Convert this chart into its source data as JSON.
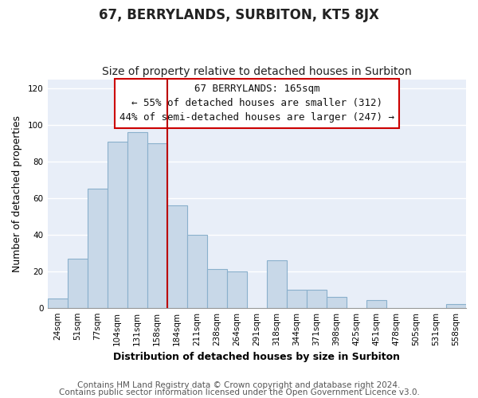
{
  "title": "67, BERRYLANDS, SURBITON, KT5 8JX",
  "subtitle": "Size of property relative to detached houses in Surbiton",
  "xlabel": "Distribution of detached houses by size in Surbiton",
  "ylabel": "Number of detached properties",
  "categories": [
    "24sqm",
    "51sqm",
    "77sqm",
    "104sqm",
    "131sqm",
    "158sqm",
    "184sqm",
    "211sqm",
    "238sqm",
    "264sqm",
    "291sqm",
    "318sqm",
    "344sqm",
    "371sqm",
    "398sqm",
    "425sqm",
    "451sqm",
    "478sqm",
    "505sqm",
    "531sqm",
    "558sqm"
  ],
  "values": [
    5,
    27,
    65,
    91,
    96,
    90,
    56,
    40,
    21,
    20,
    0,
    26,
    10,
    10,
    6,
    0,
    4,
    0,
    0,
    0,
    2
  ],
  "bar_color": "#c8d8e8",
  "bar_edge_color": "#8ab0cc",
  "marker_line_index": 5,
  "marker_color": "#bb0000",
  "ylim": [
    0,
    125
  ],
  "yticks": [
    0,
    20,
    40,
    60,
    80,
    100,
    120
  ],
  "annotation_title": "67 BERRYLANDS: 165sqm",
  "annotation_line1": "← 55% of detached houses are smaller (312)",
  "annotation_line2": "44% of semi-detached houses are larger (247) →",
  "annotation_box_facecolor": "#ffffff",
  "annotation_box_edgecolor": "#cc0000",
  "footer1": "Contains HM Land Registry data © Crown copyright and database right 2024.",
  "footer2": "Contains public sector information licensed under the Open Government Licence v3.0.",
  "background_color": "#ffffff",
  "plot_background": "#e8eef8",
  "grid_color": "#ffffff",
  "title_fontsize": 12,
  "subtitle_fontsize": 10,
  "axis_label_fontsize": 9,
  "tick_fontsize": 7.5,
  "footer_fontsize": 7.5,
  "annotation_fontsize": 9
}
